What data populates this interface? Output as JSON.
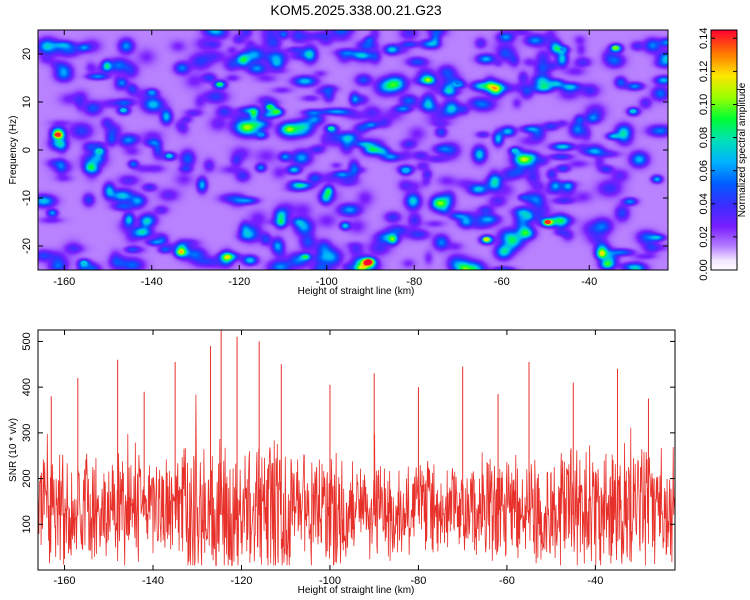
{
  "title": "KOM5.2025.338.00.21.G23",
  "chart_data": [
    {
      "type": "heatmap",
      "xlabel": "Height of straight line (km)",
      "ylabel": "Frequency (Hz)",
      "xlim": [
        -166,
        -22
      ],
      "ylim": [
        -25,
        25
      ],
      "xticks": [
        -160,
        -140,
        -120,
        -100,
        -80,
        -60,
        -40
      ],
      "yticks": [
        -20,
        -10,
        0,
        10,
        20
      ],
      "colorbar": {
        "label": "Normalized spectral amplitude",
        "range": [
          0,
          0.145
        ],
        "ticks": [
          "0.00",
          "0.02",
          "0.04",
          "0.06",
          "0.08",
          "0.10",
          "0.12",
          "0.14"
        ]
      },
      "peaks": [
        {
          "x": -161.5,
          "y": 3.2,
          "amp": 0.14
        },
        {
          "x": -90.5,
          "y": -23.2,
          "amp": 0.145
        },
        {
          "x": -49.5,
          "y": -15.0,
          "amp": 0.14
        },
        {
          "x": -63.5,
          "y": -18.6,
          "amp": 0.11
        },
        {
          "x": -34.0,
          "y": 21.3,
          "amp": 0.1
        },
        {
          "x": -111.5,
          "y": 8.0,
          "amp": 0.095
        },
        {
          "x": -113.0,
          "y": 9.0,
          "amp": 0.09
        },
        {
          "x": -124.5,
          "y": 13.7,
          "amp": 0.085
        },
        {
          "x": -99.0,
          "y": 4.5,
          "amp": 0.08
        },
        {
          "x": -136.0,
          "y": -1.2,
          "amp": 0.07
        },
        {
          "x": -152.0,
          "y": -0.1,
          "amp": 0.075
        },
        {
          "x": -146.5,
          "y": 8.3,
          "amp": 0.07
        },
        {
          "x": -155.5,
          "y": -23.5,
          "amp": 0.07
        },
        {
          "x": -57.0,
          "y": -0.1,
          "amp": 0.07
        },
        {
          "x": -30.0,
          "y": 8.1,
          "amp": 0.07
        },
        {
          "x": -82.0,
          "y": -4.3,
          "amp": 0.065
        },
        {
          "x": -115.0,
          "y": 3.2,
          "amp": 0.06
        },
        {
          "x": -140.0,
          "y": 12.0,
          "amp": 0.06
        },
        {
          "x": -70.0,
          "y": 14.0,
          "amp": 0.055
        },
        {
          "x": -46.0,
          "y": 21.0,
          "amp": 0.06
        }
      ]
    },
    {
      "type": "line",
      "xlabel": "Height of straight line (km)",
      "ylabel": "SNR (10 * v/v)",
      "xlim": [
        -166,
        -22
      ],
      "ylim": [
        0,
        525
      ],
      "xticks": [
        -160,
        -140,
        -120,
        -100,
        -80,
        -60,
        -40
      ],
      "yticks": [
        100,
        200,
        300,
        400,
        500
      ],
      "series": [
        {
          "name": "SNR",
          "color": "#e8302a",
          "x_step": 0.1,
          "baseline": 130,
          "typical_range": [
            20,
            330
          ],
          "peaks": [
            {
              "x": -124.6,
              "y": 525
            },
            {
              "x": -121.0,
              "y": 510
            },
            {
              "x": -116.0,
              "y": 500
            },
            {
              "x": -127.0,
              "y": 490
            },
            {
              "x": -148.0,
              "y": 460
            },
            {
              "x": -135.0,
              "y": 455
            },
            {
              "x": -111.0,
              "y": 450
            },
            {
              "x": -55.0,
              "y": 455
            },
            {
              "x": -70.0,
              "y": 445
            },
            {
              "x": -90.0,
              "y": 430
            },
            {
              "x": -157.0,
              "y": 420
            },
            {
              "x": -35.0,
              "y": 440
            },
            {
              "x": -45.0,
              "y": 410
            },
            {
              "x": -100.0,
              "y": 405
            },
            {
              "x": -80.0,
              "y": 400
            },
            {
              "x": -62.0,
              "y": 385
            },
            {
              "x": -142.0,
              "y": 390
            },
            {
              "x": -163.0,
              "y": 380
            },
            {
              "x": -28.0,
              "y": 375
            }
          ]
        }
      ]
    }
  ]
}
